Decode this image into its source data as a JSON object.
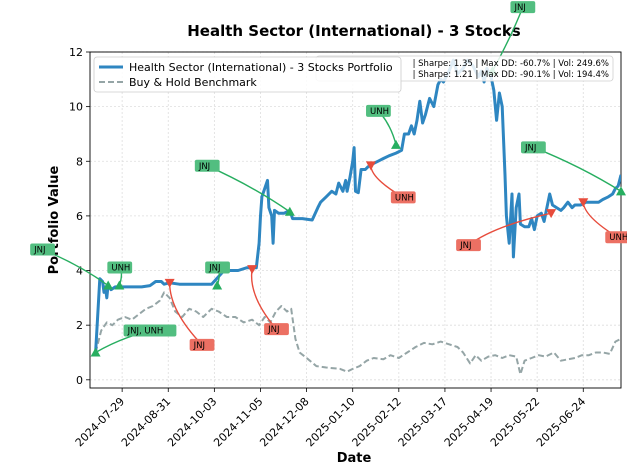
{
  "chart_data": {
    "type": "line",
    "title": "Health Sector (International) - 3 Stocks",
    "xlabel": "Date",
    "ylabel": "Portfolio Value",
    "ylim": [
      -0.3,
      12
    ],
    "yticks": [
      0,
      2,
      4,
      6,
      8,
      10,
      12
    ],
    "xlim": [
      "2024-07-06",
      "2025-07-21"
    ],
    "xticks": [
      "2024-07-29",
      "2024-08-31",
      "2024-10-03",
      "2024-11-05",
      "2024-12-08",
      "2025-01-10",
      "2025-02-12",
      "2025-03-17",
      "2025-04-19",
      "2025-05-22",
      "2025-06-24"
    ],
    "grid": true,
    "legend_position": "top-left",
    "stats_lines": [
      "| Sharpe: 1.35 | Max DD: -60.7% | Vol: 249.6%",
      "| Sharpe: 1.21 | Max DD: -90.1% | Vol: 194.4%"
    ],
    "colors": {
      "portfolio": "#2e86c1",
      "benchmark": "#95a5a6",
      "buy": "#27ae60",
      "sell": "#e74c3c",
      "buy_label_bg": "#52be80",
      "sell_label_bg": "#ec7063"
    },
    "series": [
      {
        "name": "Health Sector (International) - 3 Stocks Portfolio",
        "style": "solid",
        "points": [
          [
            "2024-07-10",
            1.0
          ],
          [
            "2024-07-12",
            2.8
          ],
          [
            "2024-07-13",
            3.7
          ],
          [
            "2024-07-15",
            3.6
          ],
          [
            "2024-07-16",
            3.2
          ],
          [
            "2024-07-17",
            3.4
          ],
          [
            "2024-07-18",
            3.0
          ],
          [
            "2024-07-19",
            3.5
          ],
          [
            "2024-07-21",
            3.3
          ],
          [
            "2024-07-24",
            3.4
          ],
          [
            "2024-07-28",
            3.4
          ],
          [
            "2024-08-05",
            3.4
          ],
          [
            "2024-08-12",
            3.4
          ],
          [
            "2024-08-18",
            3.45
          ],
          [
            "2024-08-22",
            3.6
          ],
          [
            "2024-08-26",
            3.6
          ],
          [
            "2024-08-28",
            3.5
          ],
          [
            "2024-09-01",
            3.55
          ],
          [
            "2024-09-08",
            3.5
          ],
          [
            "2024-09-15",
            3.5
          ],
          [
            "2024-09-25",
            3.5
          ],
          [
            "2024-10-01",
            3.5
          ],
          [
            "2024-10-10",
            4.0
          ],
          [
            "2024-10-20",
            4.0
          ],
          [
            "2024-10-26",
            4.1
          ],
          [
            "2024-10-30",
            4.1
          ],
          [
            "2024-11-02",
            4.1
          ],
          [
            "2024-11-04",
            5.0
          ],
          [
            "2024-11-05",
            6.0
          ],
          [
            "2024-11-06",
            6.7
          ],
          [
            "2024-11-08",
            7.0
          ],
          [
            "2024-11-10",
            7.3
          ],
          [
            "2024-11-11",
            6.3
          ],
          [
            "2024-11-13",
            6.0
          ],
          [
            "2024-11-14",
            5.0
          ],
          [
            "2024-11-15",
            6.2
          ],
          [
            "2024-11-18",
            6.1
          ],
          [
            "2024-11-22",
            6.1
          ],
          [
            "2024-11-26",
            6.2
          ],
          [
            "2024-11-28",
            5.9
          ],
          [
            "2024-12-05",
            5.9
          ],
          [
            "2024-12-12",
            5.85
          ],
          [
            "2024-12-16",
            6.3
          ],
          [
            "2024-12-18",
            6.5
          ],
          [
            "2024-12-22",
            6.7
          ],
          [
            "2024-12-26",
            6.9
          ],
          [
            "2024-12-29",
            6.8
          ],
          [
            "2024-12-31",
            7.2
          ],
          [
            "2025-01-03",
            6.9
          ],
          [
            "2025-01-05",
            7.3
          ],
          [
            "2025-01-06",
            6.9
          ],
          [
            "2025-01-08",
            7.4
          ],
          [
            "2025-01-10",
            8.0
          ],
          [
            "2025-01-11",
            8.5
          ],
          [
            "2025-01-12",
            6.9
          ],
          [
            "2025-01-14",
            6.85
          ],
          [
            "2025-01-16",
            7.7
          ],
          [
            "2025-01-19",
            7.7
          ],
          [
            "2025-01-21",
            7.8
          ],
          [
            "2025-01-24",
            7.9
          ],
          [
            "2025-01-28",
            8.0
          ],
          [
            "2025-02-01",
            8.1
          ],
          [
            "2025-02-05",
            8.2
          ],
          [
            "2025-02-10",
            8.3
          ],
          [
            "2025-02-14",
            8.4
          ],
          [
            "2025-02-16",
            9.0
          ],
          [
            "2025-02-19",
            9.0
          ],
          [
            "2025-02-21",
            9.3
          ],
          [
            "2025-02-23",
            9.0
          ],
          [
            "2025-02-25",
            9.5
          ],
          [
            "2025-02-27",
            10.2
          ],
          [
            "2025-03-01",
            9.4
          ],
          [
            "2025-03-03",
            9.7
          ],
          [
            "2025-03-06",
            10.3
          ],
          [
            "2025-03-09",
            10.0
          ],
          [
            "2025-03-12",
            10.8
          ],
          [
            "2025-03-14",
            11.0
          ],
          [
            "2025-03-16",
            10.9
          ],
          [
            "2025-03-20",
            11.3
          ],
          [
            "2025-03-23",
            11.7
          ],
          [
            "2025-03-26",
            11.2
          ],
          [
            "2025-03-30",
            11.4
          ],
          [
            "2025-04-02",
            11.7
          ],
          [
            "2025-04-06",
            11.5
          ],
          [
            "2025-04-10",
            11.1
          ],
          [
            "2025-04-12",
            11.3
          ],
          [
            "2025-04-14",
            10.9
          ],
          [
            "2025-04-16",
            11.4
          ],
          [
            "2025-04-19",
            11.1
          ],
          [
            "2025-04-21",
            10.6
          ],
          [
            "2025-04-23",
            9.5
          ],
          [
            "2025-04-25",
            10.5
          ],
          [
            "2025-04-27",
            10.0
          ],
          [
            "2025-04-29",
            7.5
          ],
          [
            "2025-04-30",
            6.0
          ],
          [
            "2025-05-02",
            5.0
          ],
          [
            "2025-05-04",
            6.8
          ],
          [
            "2025-05-05",
            4.5
          ],
          [
            "2025-05-07",
            6.3
          ],
          [
            "2025-05-09",
            6.8
          ],
          [
            "2025-05-10",
            5.7
          ],
          [
            "2025-05-13",
            5.6
          ],
          [
            "2025-05-16",
            5.6
          ],
          [
            "2025-05-18",
            5.9
          ],
          [
            "2025-05-20",
            5.5
          ],
          [
            "2025-05-22",
            6.0
          ],
          [
            "2025-05-25",
            6.1
          ],
          [
            "2025-05-27",
            5.8
          ],
          [
            "2025-05-29",
            6.3
          ],
          [
            "2025-05-31",
            6.8
          ],
          [
            "2025-06-02",
            6.4
          ],
          [
            "2025-06-05",
            6.3
          ],
          [
            "2025-06-08",
            6.2
          ],
          [
            "2025-06-10",
            6.3
          ],
          [
            "2025-06-13",
            6.5
          ],
          [
            "2025-06-16",
            6.3
          ],
          [
            "2025-06-18",
            6.4
          ],
          [
            "2025-06-22",
            6.4
          ],
          [
            "2025-06-26",
            6.5
          ],
          [
            "2025-06-30",
            6.5
          ],
          [
            "2025-07-05",
            6.5
          ],
          [
            "2025-07-08",
            6.6
          ],
          [
            "2025-07-12",
            6.7
          ],
          [
            "2025-07-15",
            6.8
          ],
          [
            "2025-07-17",
            7.0
          ],
          [
            "2025-07-19",
            7.1
          ],
          [
            "2025-07-21",
            7.5
          ]
        ]
      },
      {
        "name": "Buy & Hold Benchmark",
        "style": "dashed",
        "points": [
          [
            "2024-07-10",
            1.0
          ],
          [
            "2024-07-14",
            1.8
          ],
          [
            "2024-07-18",
            2.1
          ],
          [
            "2024-07-22",
            2.0
          ],
          [
            "2024-07-26",
            2.2
          ],
          [
            "2024-07-31",
            2.3
          ],
          [
            "2024-08-05",
            2.2
          ],
          [
            "2024-08-10",
            2.4
          ],
          [
            "2024-08-15",
            2.6
          ],
          [
            "2024-08-20",
            2.7
          ],
          [
            "2024-08-25",
            2.9
          ],
          [
            "2024-08-28",
            3.2
          ],
          [
            "2024-09-01",
            3.0
          ],
          [
            "2024-09-05",
            2.5
          ],
          [
            "2024-09-10",
            2.3
          ],
          [
            "2024-09-15",
            2.6
          ],
          [
            "2024-09-20",
            2.5
          ],
          [
            "2024-09-25",
            2.3
          ],
          [
            "2024-10-01",
            2.6
          ],
          [
            "2024-10-06",
            2.5
          ],
          [
            "2024-10-12",
            2.3
          ],
          [
            "2024-10-18",
            2.3
          ],
          [
            "2024-10-24",
            2.1
          ],
          [
            "2024-10-30",
            2.2
          ],
          [
            "2024-11-04",
            2.0
          ],
          [
            "2024-11-08",
            2.3
          ],
          [
            "2024-11-12",
            2.1
          ],
          [
            "2024-11-16",
            2.5
          ],
          [
            "2024-11-20",
            2.7
          ],
          [
            "2024-11-24",
            2.5
          ],
          [
            "2024-11-27",
            2.6
          ],
          [
            "2024-11-30",
            1.5
          ],
          [
            "2024-12-03",
            1.0
          ],
          [
            "2024-12-08",
            0.8
          ],
          [
            "2024-12-15",
            0.5
          ],
          [
            "2024-12-22",
            0.45
          ],
          [
            "2025-01-01",
            0.4
          ],
          [
            "2025-01-06",
            0.3
          ],
          [
            "2025-01-10",
            0.4
          ],
          [
            "2025-01-15",
            0.5
          ],
          [
            "2025-01-20",
            0.7
          ],
          [
            "2025-01-25",
            0.8
          ],
          [
            "2025-02-01",
            0.75
          ],
          [
            "2025-02-06",
            0.9
          ],
          [
            "2025-02-12",
            0.8
          ],
          [
            "2025-02-18",
            1.0
          ],
          [
            "2025-02-24",
            1.2
          ],
          [
            "2025-03-02",
            1.35
          ],
          [
            "2025-03-08",
            1.3
          ],
          [
            "2025-03-14",
            1.4
          ],
          [
            "2025-03-20",
            1.3
          ],
          [
            "2025-03-26",
            1.2
          ],
          [
            "2025-03-30",
            1.0
          ],
          [
            "2025-04-04",
            0.6
          ],
          [
            "2025-04-08",
            0.9
          ],
          [
            "2025-04-12",
            0.7
          ],
          [
            "2025-04-17",
            0.85
          ],
          [
            "2025-04-22",
            0.9
          ],
          [
            "2025-04-27",
            0.8
          ],
          [
            "2025-05-02",
            0.9
          ],
          [
            "2025-05-07",
            0.85
          ],
          [
            "2025-05-10",
            0.2
          ],
          [
            "2025-05-13",
            0.7
          ],
          [
            "2025-05-18",
            0.8
          ],
          [
            "2025-05-23",
            0.9
          ],
          [
            "2025-05-28",
            0.85
          ],
          [
            "2025-06-03",
            1.0
          ],
          [
            "2025-06-08",
            0.7
          ],
          [
            "2025-06-13",
            0.75
          ],
          [
            "2025-06-18",
            0.8
          ],
          [
            "2025-06-23",
            0.9
          ],
          [
            "2025-06-28",
            0.9
          ],
          [
            "2025-07-03",
            1.0
          ],
          [
            "2025-07-08",
            1.0
          ],
          [
            "2025-07-13",
            0.95
          ],
          [
            "2025-07-17",
            1.4
          ],
          [
            "2025-07-21",
            1.5
          ]
        ]
      }
    ],
    "trades": [
      {
        "type": "buy",
        "date": "2024-07-10",
        "value": 1.0,
        "label": "JNJ, UNH"
      },
      {
        "type": "buy",
        "date": "2024-07-19",
        "value": 3.45,
        "label": "JNJ"
      },
      {
        "type": "buy",
        "date": "2024-07-27",
        "value": 3.45,
        "label": "UNH"
      },
      {
        "type": "sell",
        "date": "2024-09-01",
        "value": 3.55,
        "label": "JNJ"
      },
      {
        "type": "buy",
        "date": "2024-10-05",
        "value": 3.45,
        "label": "JNJ"
      },
      {
        "type": "sell",
        "date": "2024-10-30",
        "value": 4.05,
        "label": "JNJ"
      },
      {
        "type": "buy",
        "date": "2024-11-26",
        "value": 6.15,
        "label": "JNJ"
      },
      {
        "type": "sell",
        "date": "2025-01-23",
        "value": 7.85,
        "label": "UNH"
      },
      {
        "type": "buy",
        "date": "2025-02-10",
        "value": 8.6,
        "label": "UNH"
      },
      {
        "type": "buy",
        "date": "2025-04-20",
        "value": 11.3,
        "label": "JNJ"
      },
      {
        "type": "sell",
        "date": "2025-06-01",
        "value": 6.1,
        "label": "JNJ"
      },
      {
        "type": "sell",
        "date": "2025-06-24",
        "value": 6.5,
        "label": "UNH"
      },
      {
        "type": "buy",
        "date": "2025-07-21",
        "value": 6.9,
        "label": "JNJ"
      }
    ]
  }
}
